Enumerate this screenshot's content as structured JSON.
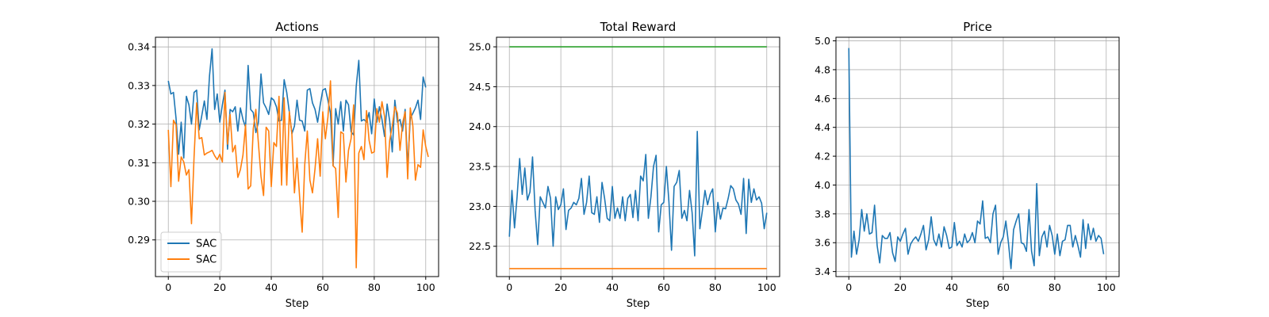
{
  "colors": {
    "blue": "#1f77b4",
    "orange": "#ff7f0e",
    "green": "#2ca02c",
    "grid": "#b0b0b0"
  },
  "chart_data": [
    {
      "type": "line",
      "title": "Actions",
      "xlabel": "Step",
      "ylabel": "",
      "xlim": [
        -5,
        105
      ],
      "ylim": [
        0.2805,
        0.3425
      ],
      "xticks": [
        0,
        20,
        40,
        60,
        80,
        100
      ],
      "yticks": [
        0.29,
        0.3,
        0.31,
        0.32,
        0.33,
        0.34
      ],
      "ytick_labels": [
        "0.29",
        "0.30",
        "0.31",
        "0.32",
        "0.33",
        "0.34"
      ],
      "xtick_labels": [
        "0",
        "20",
        "40",
        "60",
        "80",
        "100"
      ],
      "grid": true,
      "legend": {
        "placement": "lower-left"
      },
      "series": [
        {
          "name": "SAC",
          "color": "#1f77b4",
          "values": [
            0.3312,
            0.3278,
            0.3282,
            0.3215,
            0.3122,
            0.3205,
            0.3112,
            0.3272,
            0.325,
            0.32,
            0.3282,
            0.3288,
            0.3185,
            0.3222,
            0.326,
            0.3212,
            0.3325,
            0.3395,
            0.3238,
            0.3278,
            0.3205,
            0.325,
            0.3288,
            0.3135,
            0.3238,
            0.3232,
            0.3245,
            0.3182,
            0.3242,
            0.3212,
            0.3192,
            0.3352,
            0.3238,
            0.323,
            0.3178,
            0.3205,
            0.333,
            0.3255,
            0.3242,
            0.3225,
            0.3268,
            0.3262,
            0.3245,
            0.3208,
            0.321,
            0.3315,
            0.3282,
            0.3232,
            0.3175,
            0.3195,
            0.3262,
            0.321,
            0.3208,
            0.3182,
            0.3288,
            0.3292,
            0.3255,
            0.3238,
            0.3205,
            0.325,
            0.3288,
            0.3292,
            0.3262,
            0.3228,
            0.3092,
            0.324,
            0.32,
            0.3258,
            0.3182,
            0.3262,
            0.325,
            0.318,
            0.3172,
            0.3298,
            0.3365,
            0.3208,
            0.3212,
            0.3205,
            0.323,
            0.3175,
            0.3265,
            0.3205,
            0.3245,
            0.3212,
            0.3168,
            0.3252,
            0.3208,
            0.3128,
            0.3262,
            0.3205,
            0.3212,
            0.3182,
            0.3238,
            0.3088,
            0.3215,
            0.3228,
            0.3242,
            0.3262,
            0.3212,
            0.3322,
            0.3295
          ]
        },
        {
          "name": "SAC",
          "color": "#ff7f0e",
          "values": [
            0.3185,
            0.3038,
            0.321,
            0.3198,
            0.3052,
            0.3115,
            0.3102,
            0.3068,
            0.3082,
            0.2942,
            0.3115,
            0.3255,
            0.3162,
            0.3165,
            0.312,
            0.3125,
            0.3128,
            0.3132,
            0.3118,
            0.3108,
            0.3122,
            0.3102,
            0.3282,
            0.3148,
            0.3225,
            0.3128,
            0.3145,
            0.3062,
            0.3082,
            0.312,
            0.3198,
            0.3032,
            0.304,
            0.3188,
            0.3238,
            0.315,
            0.3065,
            0.3015,
            0.3192,
            0.3182,
            0.3038,
            0.3152,
            0.3142,
            0.3272,
            0.3042,
            0.3268,
            0.3042,
            0.3232,
            0.3175,
            0.3022,
            0.3112,
            0.3012,
            0.292,
            0.3095,
            0.3182,
            0.3055,
            0.3022,
            0.3085,
            0.3162,
            0.3065,
            0.3232,
            0.3162,
            0.3218,
            0.3312,
            0.3092,
            0.3085,
            0.2958,
            0.318,
            0.3175,
            0.305,
            0.3132,
            0.3162,
            0.325,
            0.2828,
            0.3125,
            0.3142,
            0.3108,
            0.3235,
            0.3158,
            0.3125,
            0.3128,
            0.324,
            0.3205,
            0.3258,
            0.322,
            0.3062,
            0.3158,
            0.3195,
            0.3245,
            0.3228,
            0.3132,
            0.3202,
            0.3232,
            0.3058,
            0.3242,
            0.3195,
            0.3055,
            0.3095,
            0.3088,
            0.3185,
            0.3142,
            0.3115
          ]
        }
      ]
    },
    {
      "type": "line",
      "title": "Total Reward",
      "xlabel": "Step",
      "ylabel": "",
      "xlim": [
        -5,
        105
      ],
      "ylim": [
        22.12,
        25.12
      ],
      "xticks": [
        0,
        20,
        40,
        60,
        80,
        100
      ],
      "xtick_labels": [
        "0",
        "20",
        "40",
        "60",
        "80",
        "100"
      ],
      "yticks": [
        22.5,
        23.0,
        23.5,
        24.0,
        24.5,
        25.0
      ],
      "ytick_labels": [
        "22.5",
        "23.0",
        "23.5",
        "24.0",
        "24.5",
        "25.0"
      ],
      "grid": true,
      "series": [
        {
          "color": "#1f77b4",
          "values": [
            22.62,
            23.2,
            22.73,
            23.12,
            23.6,
            23.15,
            23.48,
            23.08,
            23.18,
            23.62,
            22.95,
            22.52,
            23.12,
            23.05,
            22.98,
            23.25,
            23.1,
            22.5,
            23.12,
            22.96,
            23.02,
            23.22,
            22.71,
            22.95,
            22.98,
            23.05,
            23.02,
            23.1,
            23.35,
            22.9,
            23.05,
            23.38,
            22.92,
            22.9,
            23.12,
            22.8,
            23.3,
            23.1,
            22.85,
            22.82,
            23.25,
            22.85,
            22.98,
            22.85,
            23.12,
            22.82,
            23.1,
            23.15,
            22.86,
            23.2,
            22.82,
            23.38,
            23.32,
            23.65,
            22.85,
            23.12,
            23.5,
            23.64,
            22.68,
            23.02,
            23.05,
            23.5,
            23.05,
            22.45,
            23.25,
            23.3,
            23.45,
            22.85,
            22.95,
            22.82,
            23.2,
            22.92,
            22.38,
            23.94,
            22.72,
            22.95,
            23.2,
            23.02,
            23.15,
            23.22,
            22.68,
            23.05,
            22.84,
            22.98,
            22.97,
            23.1,
            23.26,
            23.22,
            23.08,
            23.03,
            22.9,
            23.35,
            22.66,
            23.34,
            23.05,
            23.22,
            23.08,
            23.12,
            23.04,
            22.72,
            22.92
          ]
        },
        {
          "color": "#2ca02c",
          "values": [
            25.0,
            25.0
          ],
          "x": [
            0,
            100
          ]
        },
        {
          "color": "#ff7f0e",
          "values": [
            22.22,
            22.22
          ],
          "x": [
            0,
            100
          ]
        }
      ]
    },
    {
      "type": "line",
      "title": "Price",
      "xlabel": "Step",
      "ylabel": "",
      "xlim": [
        -5,
        105
      ],
      "ylim": [
        3.365,
        5.025
      ],
      "xticks": [
        0,
        20,
        40,
        60,
        80,
        100
      ],
      "xtick_labels": [
        "0",
        "20",
        "40",
        "60",
        "80",
        "100"
      ],
      "yticks": [
        3.4,
        3.6,
        3.8,
        4.0,
        4.2,
        4.4,
        4.6,
        4.8,
        5.0
      ],
      "ytick_labels": [
        "3.4",
        "3.6",
        "3.8",
        "4.0",
        "4.2",
        "4.4",
        "4.6",
        "4.8",
        "5.0"
      ],
      "grid": true,
      "series": [
        {
          "color": "#1f77b4",
          "values": [
            4.95,
            3.5,
            3.68,
            3.52,
            3.62,
            3.83,
            3.68,
            3.8,
            3.66,
            3.67,
            3.86,
            3.58,
            3.46,
            3.65,
            3.63,
            3.63,
            3.67,
            3.53,
            3.47,
            3.64,
            3.61,
            3.66,
            3.7,
            3.52,
            3.59,
            3.62,
            3.64,
            3.61,
            3.66,
            3.72,
            3.55,
            3.62,
            3.78,
            3.62,
            3.58,
            3.66,
            3.57,
            3.71,
            3.65,
            3.56,
            3.57,
            3.74,
            3.58,
            3.61,
            3.57,
            3.66,
            3.6,
            3.62,
            3.67,
            3.6,
            3.75,
            3.73,
            3.89,
            3.63,
            3.64,
            3.6,
            3.8,
            3.86,
            3.52,
            3.6,
            3.64,
            3.75,
            3.6,
            3.42,
            3.69,
            3.75,
            3.8,
            3.6,
            3.59,
            3.54,
            3.83,
            3.54,
            3.44,
            4.01,
            3.51,
            3.64,
            3.68,
            3.57,
            3.72,
            3.65,
            3.52,
            3.66,
            3.51,
            3.61,
            3.62,
            3.72,
            3.72,
            3.57,
            3.65,
            3.58,
            3.5,
            3.76,
            3.56,
            3.73,
            3.62,
            3.7,
            3.61,
            3.65,
            3.63,
            3.52
          ]
        }
      ]
    }
  ]
}
